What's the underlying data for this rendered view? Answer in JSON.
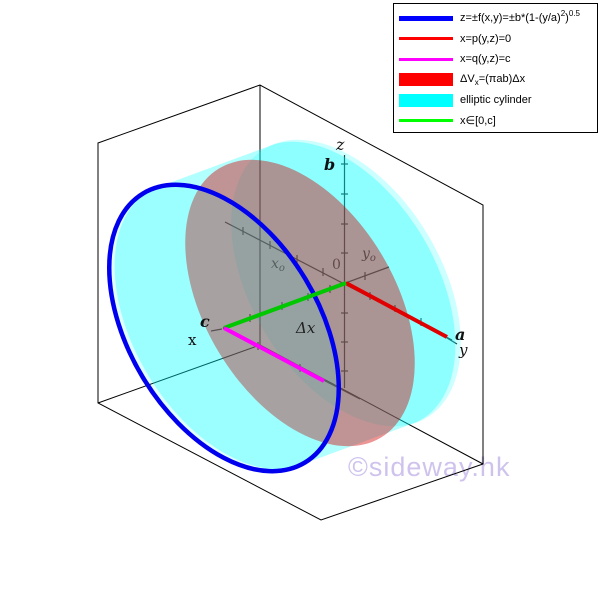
{
  "colors": {
    "plot_blue": "#0000ee",
    "plot_red": "#e00000",
    "plot_green": "#00c800",
    "plot_magenta": "#ff00ff",
    "fill_cyan": "#00ffff",
    "fill_red": "#d40000",
    "legend_blue": "#0000ff",
    "legend_red": "#ff0000",
    "legend_magenta": "#ff00ff",
    "legend_green": "#00ff00",
    "legend_cyan": "#00ffff",
    "axis": "#1f1f1f",
    "box": "#000000",
    "watermark": "#cfc3ee"
  },
  "legend": {
    "items": [
      {
        "swatch": "line",
        "h": 5,
        "color": "legend_blue",
        "parts": [
          [
            "z=±f(x,y)=±b*(1-(y/a)",
            "span"
          ],
          [
            "2",
            "sup"
          ],
          [
            ")",
            "span"
          ],
          [
            "0.5",
            "sup"
          ]
        ]
      },
      {
        "swatch": "line",
        "h": 3,
        "color": "legend_red",
        "parts": [
          [
            "x=p(y,z)=0",
            "span"
          ]
        ]
      },
      {
        "swatch": "line",
        "h": 3,
        "color": "legend_magenta",
        "parts": [
          [
            "x=q(y,z)=c",
            "span"
          ]
        ]
      },
      {
        "swatch": "box",
        "h": 13,
        "color": "legend_red",
        "parts": [
          [
            "ΔV",
            "span"
          ],
          [
            "x",
            "sub"
          ],
          [
            "=(πab)Δx",
            "span"
          ]
        ]
      },
      {
        "swatch": "box",
        "h": 13,
        "color": "legend_cyan",
        "parts": [
          [
            "elliptic cylinder",
            "span"
          ]
        ]
      },
      {
        "swatch": "line",
        "h": 3,
        "color": "legend_green",
        "parts": [
          [
            "x∈[0,c]",
            "span"
          ]
        ]
      }
    ]
  },
  "plot": {
    "labels": {
      "z": {
        "t": "z"
      },
      "b": {
        "t": "b"
      },
      "zero": {
        "t": "0"
      },
      "yo": {
        "main": "y",
        "sub": "o"
      },
      "xo": {
        "main": "x",
        "sub": "o"
      },
      "dx": {
        "t": "Δx"
      },
      "c": {
        "t": "c"
      },
      "x": {
        "t": "x"
      },
      "a": {
        "t": "a"
      },
      "y": {
        "t": "y"
      }
    }
  },
  "watermark": {
    "text": "©sideway.hk"
  }
}
